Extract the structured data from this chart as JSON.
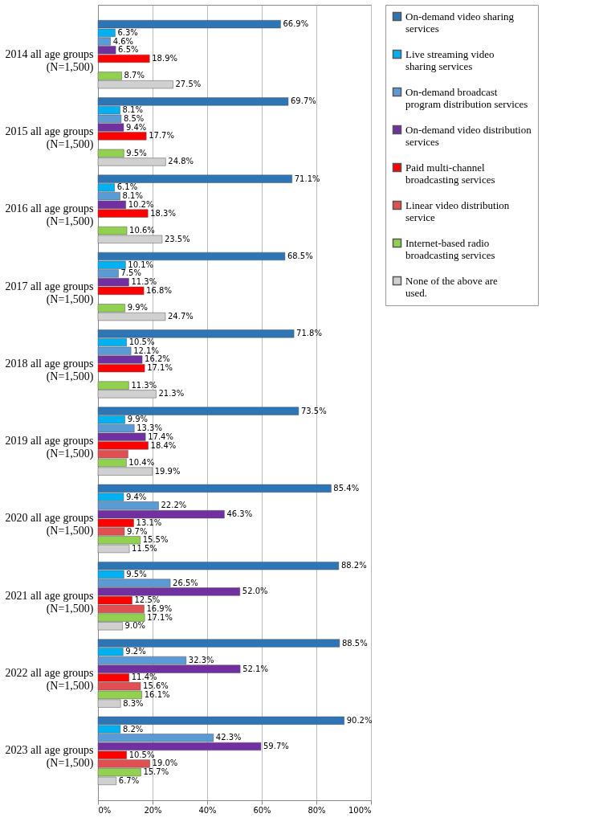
{
  "chart_data": {
    "type": "bar",
    "orientation": "horizontal",
    "categories": [
      "2014 all age groups (N=1,500)",
      "2015 all age groups (N=1,500)",
      "2016 all age groups (N=1,500)",
      "2017 all age groups (N=1,500)",
      "2018 all age groups (N=1,500)",
      "2019 all age groups (N=1,500)",
      "2020 all age groups (N=1,500)",
      "2021 all age groups (N=1,500)",
      "2022 all age groups (N=1,500)",
      "2023 all age groups (N=1,500)"
    ],
    "series": [
      {
        "name": "On-demand video sharing services",
        "color": "#2e75b6",
        "values": [
          66.9,
          69.7,
          71.1,
          68.5,
          71.8,
          73.5,
          85.4,
          88.2,
          88.5,
          90.2
        ],
        "value_labels": [
          "66.9%",
          "69.7%",
          "71.1%",
          "68.5%",
          "71.8%",
          "73.5%",
          "85.4%",
          "88.2%",
          "88.5%",
          "90.2%"
        ]
      },
      {
        "name": "Live streaming video sharing services",
        "color": "#00b0f0",
        "values": [
          6.3,
          8.1,
          6.1,
          10.1,
          10.5,
          9.9,
          9.4,
          9.5,
          9.2,
          8.2
        ],
        "value_labels": [
          "6.3%",
          "8.1%",
          "6.1%",
          "10.1%",
          "10.5%",
          "9.9%",
          "9.4%",
          "9.5%",
          "9.2%",
          "8.2%"
        ]
      },
      {
        "name": "On-demand broadcast program distribution services",
        "color": "#5b9bd5",
        "values": [
          4.6,
          8.5,
          8.1,
          7.5,
          12.1,
          13.3,
          22.2,
          26.5,
          32.3,
          42.3
        ],
        "value_labels": [
          "4.6%",
          "8.5%",
          "8.1%",
          "7.5%",
          "12.1%",
          "13.3%",
          "22.2%",
          "26.5%",
          "32.3%",
          "42.3%"
        ]
      },
      {
        "name": "On-demand video distribution services",
        "color": "#7030a0",
        "values": [
          6.5,
          9.4,
          10.2,
          11.3,
          16.2,
          17.4,
          46.3,
          52.0,
          52.1,
          59.7
        ],
        "value_labels": [
          "6.5%",
          "9.4%",
          "10.2%",
          "11.3%",
          "16.2%",
          "17.4%",
          "46.3%",
          "52.0%",
          "52.1%",
          "59.7%"
        ]
      },
      {
        "name": "Paid multi-channel broadcasting services",
        "color": "#ff0000",
        "values": [
          18.9,
          17.7,
          18.3,
          16.8,
          17.1,
          18.4,
          13.1,
          12.5,
          11.4,
          10.5
        ],
        "value_labels": [
          "18.9%",
          "17.7%",
          "18.3%",
          "16.8%",
          "17.1%",
          "18.4%",
          "13.1%",
          "12.5%",
          "11.4%",
          "10.5%"
        ]
      },
      {
        "name": "Linear video distribution service",
        "color": "#e05050",
        "values": [
          null,
          null,
          null,
          null,
          null,
          11.0,
          9.7,
          16.9,
          15.6,
          19.0
        ],
        "value_labels": [
          null,
          null,
          null,
          null,
          null,
          null,
          "9.7%",
          "16.9%",
          "15.6%",
          "19.0%"
        ]
      },
      {
        "name": "Internet-based radio broadcasting services",
        "color": "#92d050",
        "values": [
          8.7,
          9.5,
          10.6,
          9.9,
          11.3,
          10.4,
          15.5,
          17.1,
          16.1,
          15.7
        ],
        "value_labels": [
          "8.7%",
          "9.5%",
          "10.6%",
          "9.9%",
          "11.3%",
          "10.4%",
          "15.5%",
          "17.1%",
          "16.1%",
          "15.7%"
        ]
      },
      {
        "name": "None of the above are used.",
        "color": "#d0d0d0",
        "values": [
          27.5,
          24.8,
          23.5,
          24.7,
          21.3,
          19.9,
          11.5,
          9.0,
          8.3,
          6.7
        ],
        "value_labels": [
          "27.5%",
          "24.8%",
          "23.5%",
          "24.7%",
          "21.3%",
          "19.9%",
          "11.5%",
          "9.0%",
          "8.3%",
          "6.7%"
        ]
      }
    ],
    "xlim": [
      0,
      100
    ],
    "xticks": [
      {
        "value": 0,
        "label": "0%"
      },
      {
        "value": 20,
        "label": "20%"
      },
      {
        "value": 40,
        "label": "40%"
      },
      {
        "value": 60,
        "label": "60%"
      },
      {
        "value": 80,
        "label": "80%"
      },
      {
        "value": 100,
        "label": "100%"
      }
    ],
    "grid": "x",
    "legend": "right"
  }
}
